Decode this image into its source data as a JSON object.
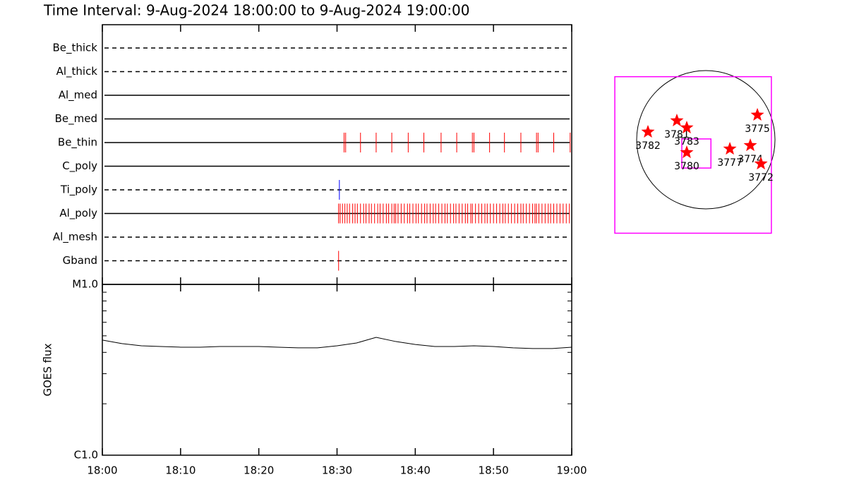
{
  "chart_data": [
    {
      "type": "event",
      "title": "Time Interval:  9-Aug-2024 18:00:00 to  9-Aug-2024 19:00:00",
      "xlim": [
        0,
        60
      ],
      "rows": [
        {
          "name": "Be_thick",
          "style": "dashed",
          "color": "#ff0000",
          "events": []
        },
        {
          "name": "Al_thick",
          "style": "dashed",
          "color": "#ff0000",
          "events": []
        },
        {
          "name": "Al_med",
          "style": "solid",
          "color": "#ff0000",
          "events": []
        },
        {
          "name": "Be_med",
          "style": "solid",
          "color": "#ff0000",
          "events": []
        },
        {
          "name": "Be_thin",
          "style": "solid",
          "color": "#ff0000",
          "events": [
            30.9,
            31.1,
            33.0,
            35.0,
            37.0,
            39.1,
            41.1,
            43.3,
            45.3,
            47.3,
            47.5,
            49.5,
            51.4,
            53.5,
            55.5,
            55.7,
            57.7,
            59.8
          ]
        },
        {
          "name": "C_poly",
          "style": "solid",
          "color": "#ff0000",
          "events": []
        },
        {
          "name": "Ti_poly",
          "style": "dashed",
          "color": "#0000ff",
          "events": [
            30.3
          ]
        },
        {
          "name": "Al_poly",
          "style": "solid",
          "color": "#ff0000",
          "events": [
            30.2,
            30.4,
            30.7,
            31.0,
            31.3,
            31.6,
            32.0,
            32.3,
            32.6,
            33.0,
            33.4,
            33.7,
            34.1,
            34.4,
            34.8,
            35.2,
            35.5,
            35.9,
            36.3,
            36.6,
            37.0,
            37.3,
            37.5,
            37.8,
            38.2,
            38.6,
            39.0,
            39.3,
            39.7,
            40.1,
            40.4,
            40.8,
            41.2,
            41.5,
            41.9,
            42.3,
            42.6,
            43.0,
            43.4,
            43.8,
            44.1,
            44.5,
            44.9,
            45.2,
            45.6,
            46.0,
            46.4,
            46.7,
            47.1,
            47.3,
            47.7,
            48.1,
            48.5,
            48.9,
            49.2,
            49.6,
            50.0,
            50.4,
            50.8,
            51.2,
            51.5,
            51.9,
            52.3,
            52.7,
            53.1,
            53.5,
            53.8,
            54.2,
            54.6,
            55.0,
            55.3,
            55.5,
            55.8,
            56.2,
            56.6,
            57.0,
            57.3,
            57.7,
            58.1,
            58.5,
            58.9,
            59.3,
            59.7
          ]
        },
        {
          "name": "Al_mesh",
          "style": "dashed",
          "color": "#ff0000",
          "events": []
        },
        {
          "name": "Gband",
          "style": "dashed",
          "color": "#ff0000",
          "events": [
            30.2
          ]
        }
      ]
    },
    {
      "type": "line",
      "ylabel": "GOES flux",
      "log": true,
      "ylim": [
        1e-06,
        1e-05
      ],
      "yticks": [
        {
          "value": 1e-06,
          "label": "C1.0"
        },
        {
          "value": 1e-05,
          "label": "M1.0"
        }
      ],
      "yminorticks": [
        2e-06,
        3e-06,
        4e-06,
        5e-06,
        6e-06,
        7e-06,
        8e-06,
        9e-06
      ],
      "xlim": [
        0,
        60
      ],
      "xticks": [
        {
          "value": 0,
          "label": "18:00"
        },
        {
          "value": 10,
          "label": "18:10"
        },
        {
          "value": 20,
          "label": "18:20"
        },
        {
          "value": 30,
          "label": "18:30"
        },
        {
          "value": 40,
          "label": "18:40"
        },
        {
          "value": 50,
          "label": "18:50"
        },
        {
          "value": 60,
          "label": "19:00"
        }
      ],
      "color": "#000000",
      "x": [
        0,
        2.5,
        5,
        7.5,
        10,
        12.5,
        15,
        17.5,
        20,
        22.5,
        25,
        27.5,
        30,
        32.5,
        35,
        37.5,
        40,
        42.5,
        45,
        47.5,
        50,
        52.5,
        55,
        57.5,
        60
      ],
      "values": [
        4.72e-06,
        4.5e-06,
        4.37e-06,
        4.33e-06,
        4.29e-06,
        4.29e-06,
        4.33e-06,
        4.33e-06,
        4.33e-06,
        4.29e-06,
        4.25e-06,
        4.25e-06,
        4.37e-06,
        4.54e-06,
        4.9e-06,
        4.63e-06,
        4.45e-06,
        4.33e-06,
        4.33e-06,
        4.37e-06,
        4.33e-06,
        4.25e-06,
        4.21e-06,
        4.21e-06,
        4.29e-06
      ]
    },
    {
      "type": "map",
      "rsun": 950,
      "color": "#ff0000",
      "fov_color": "#ff00ff",
      "fov": [
        {
          "x": -175,
          "y": -209,
          "size": 2150
        },
        {
          "x": -130,
          "y": -189,
          "size": 400
        }
      ],
      "regions": [
        {
          "label": "3782",
          "x": -795,
          "y": 107
        },
        {
          "label": "3781",
          "x": -398,
          "y": 262
        },
        {
          "label": "3783",
          "x": -262,
          "y": 165
        },
        {
          "label": "3780",
          "x": -262,
          "y": -175
        },
        {
          "label": "3777",
          "x": 330,
          "y": -126
        },
        {
          "label": "3774",
          "x": 611,
          "y": -78
        },
        {
          "label": "3772",
          "x": 757,
          "y": -330
        },
        {
          "label": "3775",
          "x": 708,
          "y": 340
        }
      ]
    }
  ]
}
